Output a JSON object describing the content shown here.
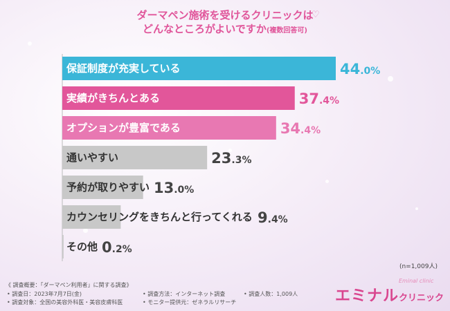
{
  "header": {
    "title_line1": "ダーマペン施術を受けるクリニックは",
    "title_line2": "どんなところがよいですか",
    "title_note": "(複数回答可)",
    "sample_size": "(n=1,009人)"
  },
  "chart_data": {
    "type": "bar",
    "orientation": "horizontal",
    "categories": [
      "保証制度が充実している",
      "実績がきちんとある",
      "オプションが豊富である",
      "通いやすい",
      "予約が取りやすい",
      "カウンセリングをきちんと行ってくれる",
      "その他"
    ],
    "values": [
      44.0,
      37.4,
      34.4,
      23.3,
      13.0,
      9.4,
      0.2
    ],
    "value_labels": [
      {
        "int": "44",
        "dec": ".0%"
      },
      {
        "int": "37",
        "dec": ".4%"
      },
      {
        "int": "34",
        "dec": ".4%"
      },
      {
        "int": "23",
        "dec": ".3%"
      },
      {
        "int": "13",
        "dec": ".0%"
      },
      {
        "int": "9",
        "dec": ".4%"
      },
      {
        "int": "0",
        "dec": ".2%"
      }
    ],
    "colors": [
      "#3bb6d8",
      "#e2569a",
      "#e878b2",
      "#c8c8c8",
      "#c8c8c8",
      "#c8c8c8",
      "#c8c8c8"
    ],
    "value_colors": [
      "#3bb6d8",
      "#e2569a",
      "#e878b2",
      "#444444",
      "#444444",
      "#444444",
      "#444444"
    ],
    "label_colors": [
      "#ffffff",
      "#ffffff",
      "#ffffff",
      "#333333",
      "#333333",
      "#333333",
      "#333333"
    ]
  },
  "footer": {
    "line1": "《 調査概要：「ダーマペン利用者」に関する調査》",
    "date": "• 調査日：2023年7月7日(金)",
    "method": "• 調査方法：インターネット調査",
    "people": "• 調査人数：1,009人",
    "target": "• 調査対象：全国の美容外科医・美容皮膚科医",
    "provider": "• モニター提供元：ゼネラルリサーチ"
  },
  "logo": {
    "main": "エミナル",
    "sub": "クリニック",
    "en": "Eminal clinic"
  }
}
